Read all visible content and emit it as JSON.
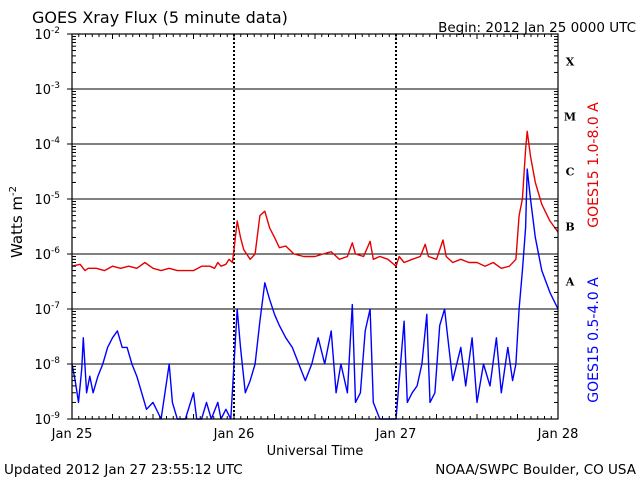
{
  "chart_data": {
    "type": "line",
    "title": "GOES Xray Flux (5 minute data)",
    "begin_label": "Begin:  2012 Jan 25 0000 UTC",
    "ylabel": "Watts m",
    "ylabel_exponent": "-2",
    "xlabel": "Universal Time",
    "footer_left": "Updated 2012 Jan 27 23:55:12 UTC",
    "footer_right": "NOAA/SWPC Boulder, CO USA",
    "y_scale": "log",
    "ylim": [
      1e-09,
      0.01
    ],
    "y_ticks": [
      {
        "base": "10",
        "exp": "-9",
        "value": 1e-09
      },
      {
        "base": "10",
        "exp": "-8",
        "value": 1e-08
      },
      {
        "base": "10",
        "exp": "-7",
        "value": 1e-07
      },
      {
        "base": "10",
        "exp": "-6",
        "value": 1e-06
      },
      {
        "base": "10",
        "exp": "-5",
        "value": 1e-05
      },
      {
        "base": "10",
        "exp": "-4",
        "value": 0.0001
      },
      {
        "base": "10",
        "exp": "-3",
        "value": 0.001
      },
      {
        "base": "10",
        "exp": "-2",
        "value": 0.01
      }
    ],
    "x_ticks": [
      "Jan 25",
      "Jan 26",
      "Jan 27",
      "Jan 28"
    ],
    "xlim_days": [
      0,
      3
    ],
    "flare_classes": [
      {
        "label": "A",
        "value": 1e-07
      },
      {
        "label": "B",
        "value": 1e-06
      },
      {
        "label": "C",
        "value": 1e-05
      },
      {
        "label": "M",
        "value": 0.0001
      },
      {
        "label": "X",
        "value": 0.001
      }
    ],
    "grid": true,
    "series": [
      {
        "name": "GOES15 1.0-8.0 A",
        "color": "#e60000",
        "points": [
          [
            0.0,
            6e-07
          ],
          [
            0.05,
            6.5e-07
          ],
          [
            0.08,
            5e-07
          ],
          [
            0.1,
            5.5e-07
          ],
          [
            0.15,
            5.5e-07
          ],
          [
            0.2,
            5e-07
          ],
          [
            0.25,
            6e-07
          ],
          [
            0.3,
            5.5e-07
          ],
          [
            0.35,
            6e-07
          ],
          [
            0.4,
            5.5e-07
          ],
          [
            0.45,
            7e-07
          ],
          [
            0.5,
            5.5e-07
          ],
          [
            0.55,
            5e-07
          ],
          [
            0.6,
            5.5e-07
          ],
          [
            0.65,
            5e-07
          ],
          [
            0.7,
            5e-07
          ],
          [
            0.75,
            5e-07
          ],
          [
            0.8,
            6e-07
          ],
          [
            0.85,
            6e-07
          ],
          [
            0.88,
            5.5e-07
          ],
          [
            0.9,
            7e-07
          ],
          [
            0.92,
            6e-07
          ],
          [
            0.95,
            6.5e-07
          ],
          [
            0.97,
            8e-07
          ],
          [
            0.99,
            7e-07
          ],
          [
            1.0,
            1.2e-06
          ],
          [
            1.02,
            4e-06
          ],
          [
            1.04,
            2e-06
          ],
          [
            1.06,
            1.2e-06
          ],
          [
            1.1,
            8e-07
          ],
          [
            1.13,
            1e-06
          ],
          [
            1.16,
            5e-06
          ],
          [
            1.19,
            6e-06
          ],
          [
            1.22,
            3e-06
          ],
          [
            1.25,
            2e-06
          ],
          [
            1.28,
            1.3e-06
          ],
          [
            1.32,
            1.4e-06
          ],
          [
            1.37,
            1e-06
          ],
          [
            1.43,
            9e-07
          ],
          [
            1.5,
            9e-07
          ],
          [
            1.55,
            1e-06
          ],
          [
            1.6,
            1.1e-06
          ],
          [
            1.65,
            8e-07
          ],
          [
            1.7,
            9e-07
          ],
          [
            1.73,
            1.6e-06
          ],
          [
            1.75,
            1e-06
          ],
          [
            1.8,
            9e-07
          ],
          [
            1.84,
            1.7e-06
          ],
          [
            1.86,
            8e-07
          ],
          [
            1.9,
            9e-07
          ],
          [
            1.95,
            8e-07
          ],
          [
            2.0,
            6e-07
          ],
          [
            2.02,
            9e-07
          ],
          [
            2.05,
            7e-07
          ],
          [
            2.1,
            8e-07
          ],
          [
            2.15,
            9e-07
          ],
          [
            2.18,
            1.5e-06
          ],
          [
            2.2,
            9e-07
          ],
          [
            2.25,
            8e-07
          ],
          [
            2.29,
            1.8e-06
          ],
          [
            2.31,
            9e-07
          ],
          [
            2.35,
            7e-07
          ],
          [
            2.4,
            8e-07
          ],
          [
            2.45,
            7e-07
          ],
          [
            2.5,
            7e-07
          ],
          [
            2.55,
            6e-07
          ],
          [
            2.6,
            7e-07
          ],
          [
            2.65,
            5.5e-07
          ],
          [
            2.7,
            6e-07
          ],
          [
            2.74,
            8e-07
          ],
          [
            2.76,
            5e-06
          ],
          [
            2.78,
            1e-05
          ],
          [
            2.8,
            8e-05
          ],
          [
            2.81,
            0.00017
          ],
          [
            2.83,
            6e-05
          ],
          [
            2.86,
            2e-05
          ],
          [
            2.9,
            8e-06
          ],
          [
            2.95,
            4e-06
          ],
          [
            3.0,
            2.5e-06
          ]
        ]
      },
      {
        "name": "GOES15 0.5-4.0 A",
        "color": "#0000ff",
        "points": [
          [
            0.0,
            1e-08
          ],
          [
            0.02,
            5e-09
          ],
          [
            0.04,
            2e-09
          ],
          [
            0.06,
            8e-09
          ],
          [
            0.07,
            3e-08
          ],
          [
            0.09,
            3e-09
          ],
          [
            0.11,
            6e-09
          ],
          [
            0.13,
            3e-09
          ],
          [
            0.16,
            6e-09
          ],
          [
            0.19,
            1e-08
          ],
          [
            0.22,
            2e-08
          ],
          [
            0.25,
            3e-08
          ],
          [
            0.28,
            4e-08
          ],
          [
            0.31,
            2e-08
          ],
          [
            0.34,
            2e-08
          ],
          [
            0.37,
            1e-08
          ],
          [
            0.4,
            6e-09
          ],
          [
            0.43,
            3e-09
          ],
          [
            0.46,
            1.5e-09
          ],
          [
            0.5,
            2e-09
          ],
          [
            0.55,
            1e-09
          ],
          [
            0.6,
            1e-08
          ],
          [
            0.62,
            2e-09
          ],
          [
            0.65,
            1e-09
          ],
          [
            0.7,
            1e-09
          ],
          [
            0.75,
            3e-09
          ],
          [
            0.77,
            1e-09
          ],
          [
            0.8,
            1e-09
          ],
          [
            0.83,
            2e-09
          ],
          [
            0.86,
            1e-09
          ],
          [
            0.9,
            2e-09
          ],
          [
            0.92,
            1e-09
          ],
          [
            0.95,
            1.5e-09
          ],
          [
            0.98,
            1e-09
          ],
          [
            1.0,
            1e-08
          ],
          [
            1.02,
            1e-07
          ],
          [
            1.04,
            2e-08
          ],
          [
            1.07,
            3e-09
          ],
          [
            1.1,
            5e-09
          ],
          [
            1.13,
            1e-08
          ],
          [
            1.16,
            6e-08
          ],
          [
            1.19,
            3e-07
          ],
          [
            1.22,
            1.5e-07
          ],
          [
            1.25,
            8e-08
          ],
          [
            1.28,
            5e-08
          ],
          [
            1.32,
            3e-08
          ],
          [
            1.36,
            2e-08
          ],
          [
            1.4,
            1e-08
          ],
          [
            1.44,
            5e-09
          ],
          [
            1.48,
            1e-08
          ],
          [
            1.52,
            3e-08
          ],
          [
            1.56,
            1e-08
          ],
          [
            1.6,
            4e-08
          ],
          [
            1.63,
            3e-09
          ],
          [
            1.66,
            1e-08
          ],
          [
            1.7,
            3e-09
          ],
          [
            1.73,
            1.2e-07
          ],
          [
            1.75,
            2e-09
          ],
          [
            1.78,
            3e-09
          ],
          [
            1.81,
            4e-08
          ],
          [
            1.84,
            1e-07
          ],
          [
            1.86,
            2e-09
          ],
          [
            1.9,
            1e-09
          ],
          [
            1.95,
            1e-09
          ],
          [
            2.0,
            1e-09
          ],
          [
            2.05,
            6e-08
          ],
          [
            2.07,
            2e-09
          ],
          [
            2.1,
            3e-09
          ],
          [
            2.13,
            4e-09
          ],
          [
            2.16,
            1e-08
          ],
          [
            2.19,
            8e-08
          ],
          [
            2.21,
            2e-09
          ],
          [
            2.24,
            3e-09
          ],
          [
            2.27,
            5e-08
          ],
          [
            2.3,
            1e-07
          ],
          [
            2.32,
            3e-08
          ],
          [
            2.35,
            5e-09
          ],
          [
            2.4,
            2e-08
          ],
          [
            2.43,
            4e-09
          ],
          [
            2.47,
            3e-08
          ],
          [
            2.5,
            2e-09
          ],
          [
            2.54,
            1e-08
          ],
          [
            2.58,
            4e-09
          ],
          [
            2.62,
            3e-08
          ],
          [
            2.65,
            3e-09
          ],
          [
            2.69,
            2e-08
          ],
          [
            2.72,
            5e-09
          ],
          [
            2.74,
            1e-08
          ],
          [
            2.76,
            1e-07
          ],
          [
            2.78,
            5e-07
          ],
          [
            2.8,
            3e-06
          ],
          [
            2.81,
            3.5e-05
          ],
          [
            2.83,
            1e-05
          ],
          [
            2.86,
            2e-06
          ],
          [
            2.9,
            5e-07
          ],
          [
            2.95,
            2e-07
          ],
          [
            3.0,
            1e-07
          ]
        ]
      }
    ]
  }
}
